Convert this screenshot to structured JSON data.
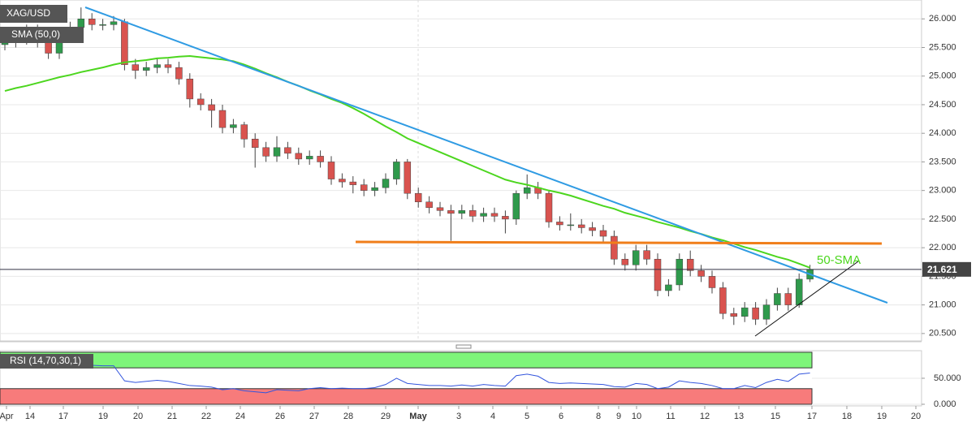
{
  "chart_data": {
    "type": "candlestick",
    "title": "XAG/USD",
    "open": [
      25.55,
      25.6,
      25.65,
      25.8,
      25.6,
      25.4,
      25.75,
      25.85,
      26.0,
      25.9,
      25.9,
      25.95,
      25.2,
      25.1,
      25.15,
      25.2,
      25.15,
      24.95,
      24.6,
      24.5,
      24.4,
      24.1,
      24.15,
      23.9,
      23.75,
      23.6,
      23.75,
      23.65,
      23.55,
      23.6,
      23.5,
      23.2,
      23.15,
      23.1,
      23.0,
      23.05,
      23.2,
      23.5,
      22.95,
      22.8,
      22.7,
      22.65,
      22.6,
      22.65,
      22.55,
      22.6,
      22.55,
      22.5,
      22.95,
      23.05,
      22.95,
      22.45,
      22.4,
      22.4,
      22.35,
      22.3,
      22.2,
      21.8,
      21.7,
      21.95,
      21.8,
      21.25,
      21.35,
      21.8,
      21.6,
      21.5,
      21.3,
      20.85,
      20.8,
      20.95,
      20.75,
      21.0,
      21.2,
      21.0,
      21.45
    ],
    "high": [
      25.7,
      25.75,
      25.9,
      25.9,
      25.7,
      25.85,
      25.95,
      26.2,
      26.1,
      26.0,
      26.05,
      26.0,
      25.3,
      25.25,
      25.3,
      25.3,
      25.25,
      25.05,
      24.7,
      24.6,
      24.5,
      24.25,
      24.2,
      24.0,
      23.85,
      23.95,
      23.85,
      23.75,
      23.7,
      23.7,
      23.6,
      23.3,
      23.25,
      23.2,
      23.15,
      23.3,
      23.55,
      23.55,
      23.05,
      22.9,
      22.8,
      22.75,
      22.75,
      22.75,
      22.7,
      22.7,
      22.65,
      23.0,
      23.28,
      23.15,
      23.0,
      22.55,
      22.6,
      22.5,
      22.45,
      22.4,
      22.3,
      21.9,
      22.05,
      22.05,
      21.9,
      21.45,
      21.9,
      21.95,
      21.7,
      21.6,
      21.4,
      20.95,
      21.05,
      21.05,
      21.1,
      21.3,
      21.3,
      21.55,
      21.7
    ],
    "low": [
      25.45,
      25.5,
      25.55,
      25.5,
      25.3,
      25.3,
      25.65,
      25.75,
      25.8,
      25.8,
      25.8,
      25.1,
      24.95,
      25.0,
      25.05,
      25.05,
      24.85,
      24.45,
      24.4,
      24.1,
      24.0,
      24.0,
      23.75,
      23.4,
      23.5,
      23.5,
      23.55,
      23.45,
      23.45,
      23.4,
      23.1,
      23.05,
      22.95,
      22.9,
      22.9,
      22.95,
      23.1,
      22.85,
      22.7,
      22.6,
      22.55,
      22.12,
      22.5,
      22.45,
      22.45,
      22.45,
      22.25,
      22.4,
      22.85,
      22.85,
      22.35,
      22.3,
      22.3,
      22.25,
      22.2,
      22.1,
      21.7,
      21.6,
      21.6,
      21.7,
      21.15,
      21.15,
      21.25,
      21.5,
      21.4,
      21.2,
      20.75,
      20.65,
      20.7,
      20.65,
      20.65,
      20.9,
      20.9,
      20.95,
      21.4
    ],
    "close": [
      25.6,
      25.65,
      25.8,
      25.6,
      25.4,
      25.75,
      25.85,
      26.0,
      25.9,
      25.9,
      25.95,
      25.2,
      25.1,
      25.15,
      25.2,
      25.15,
      24.95,
      24.6,
      24.5,
      24.4,
      24.1,
      24.15,
      23.9,
      23.75,
      23.6,
      23.75,
      23.65,
      23.55,
      23.6,
      23.5,
      23.2,
      23.15,
      23.1,
      23.0,
      23.05,
      23.2,
      23.5,
      22.95,
      22.8,
      22.7,
      22.65,
      22.6,
      22.65,
      22.55,
      22.6,
      22.55,
      22.5,
      22.95,
      23.05,
      22.95,
      22.45,
      22.4,
      22.4,
      22.35,
      22.3,
      22.2,
      21.8,
      21.7,
      21.95,
      21.8,
      21.25,
      21.35,
      21.8,
      21.6,
      21.5,
      21.3,
      20.85,
      20.8,
      20.95,
      20.75,
      21.0,
      21.2,
      21.0,
      21.45,
      21.62
    ],
    "sma": {
      "name": "SMA (50,0)",
      "color": "#4cd61e",
      "values": [
        24.74,
        24.79,
        24.83,
        24.88,
        24.93,
        24.98,
        25.02,
        25.07,
        25.11,
        25.15,
        25.2,
        25.24,
        25.26,
        25.28,
        25.31,
        25.32,
        25.34,
        25.35,
        25.33,
        25.31,
        25.29,
        25.26,
        25.2,
        25.13,
        25.05,
        24.98,
        24.9,
        24.83,
        24.75,
        24.68,
        24.6,
        24.53,
        24.44,
        24.34,
        24.23,
        24.12,
        24.02,
        23.91,
        23.83,
        23.75,
        23.67,
        23.59,
        23.51,
        23.43,
        23.35,
        23.27,
        23.19,
        23.14,
        23.1,
        23.05,
        23.0,
        22.96,
        22.91,
        22.85,
        22.79,
        22.73,
        22.68,
        22.61,
        22.56,
        22.51,
        22.45,
        22.4,
        22.35,
        22.29,
        22.24,
        22.18,
        22.13,
        22.07,
        22.01,
        21.96,
        21.9,
        21.84,
        21.79,
        21.72,
        21.65
      ]
    },
    "up_color": "#2f9a4c",
    "down_color": "#d9534f",
    "last_price": 21.621,
    "annotation": "50-SMA",
    "ylim": [
      20.37,
      26.33
    ],
    "yticks": [
      {
        "value": 20.5,
        "label": "20.500"
      },
      {
        "value": 21,
        "label": "21.000"
      },
      {
        "value": 21.5,
        "label": "21.500"
      },
      {
        "value": 22,
        "label": "22.000"
      },
      {
        "value": 22.5,
        "label": "22.500"
      },
      {
        "value": 23,
        "label": "23.000"
      },
      {
        "value": 23.5,
        "label": "23.500"
      },
      {
        "value": 24,
        "label": "24.000"
      },
      {
        "value": 24.5,
        "label": "24.500"
      },
      {
        "value": 25,
        "label": "25.000"
      },
      {
        "value": 25.5,
        "label": "25.500"
      },
      {
        "value": 26,
        "label": "26.000"
      }
    ],
    "grid": true,
    "x_labels": [
      "Apr",
      "14",
      "17",
      "19",
      "20",
      "21",
      "22",
      "24",
      "26",
      "27",
      "28",
      "29",
      "May",
      "3",
      "4",
      "5",
      "6",
      "8",
      "9",
      "10",
      "11",
      "12",
      "13",
      "15",
      "17",
      "18",
      "19",
      "20"
    ],
    "rsi": {
      "name": "RSI (14,70,30,1)",
      "color": "#3355dd",
      "overbought": 70,
      "oversold": 30,
      "ylim": [
        0,
        103
      ],
      "yticks": [
        {
          "value": 50,
          "label": "50.000"
        },
        {
          "value": 0,
          "label": "0.000"
        }
      ],
      "values": [
        70,
        72,
        75,
        72,
        70,
        73,
        74,
        76,
        75,
        74,
        74,
        45,
        42,
        44,
        46,
        44,
        40,
        36,
        35,
        33,
        28,
        30,
        26,
        24,
        22,
        28,
        27,
        26,
        30,
        32,
        30,
        31,
        30,
        30,
        32,
        38,
        50,
        40,
        38,
        36,
        36,
        35,
        37,
        35,
        38,
        36,
        35,
        55,
        58,
        54,
        42,
        40,
        41,
        40,
        39,
        38,
        34,
        33,
        40,
        38,
        30,
        33,
        45,
        42,
        40,
        36,
        30,
        30,
        36,
        32,
        42,
        48,
        44,
        58,
        60
      ]
    }
  }
}
